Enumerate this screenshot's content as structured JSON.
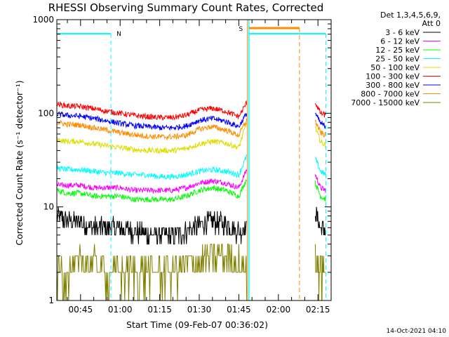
{
  "chart_data": {
    "type": "line",
    "title": "RHESSI Observing Summary Count Rates, Corrected",
    "xlabel": "Start Time (09-Feb-07 00:36:02)",
    "ylabel": "Corrected Count Rate (s⁻¹ detector⁻¹)",
    "y_scale": "log",
    "ylim": [
      1,
      1000
    ],
    "xlim_minutes": [
      36,
      140
    ],
    "x_ticks": [
      {
        "label": "00:45",
        "minute": 45
      },
      {
        "label": "01:00",
        "minute": 60
      },
      {
        "label": "01:15",
        "minute": 75
      },
      {
        "label": "01:30",
        "minute": 90
      },
      {
        "label": "01:45",
        "minute": 105
      },
      {
        "label": "02:00",
        "minute": 120
      },
      {
        "label": "02:15",
        "minute": 135
      }
    ],
    "y_ticks": [
      {
        "label": "1",
        "value": 1
      },
      {
        "label": "10",
        "value": 10
      },
      {
        "label": "100",
        "value": 100
      },
      {
        "label": "1000",
        "value": 1000
      }
    ],
    "legend_header": [
      "Det 1,3,4,5,6,9,",
      "Att 0"
    ],
    "legend_placement": "right",
    "grid": false,
    "x": [
      36,
      40,
      45,
      50,
      55,
      60,
      65,
      70,
      75,
      80,
      85,
      90,
      95,
      100,
      105,
      108
    ],
    "x_after_gap": [
      134,
      136,
      138
    ],
    "series": [
      {
        "name": "3 - 6 keV",
        "color": "#000000",
        "values": [
          8,
          7,
          7,
          6,
          6,
          6,
          5.5,
          5,
          5,
          5,
          5.5,
          6.5,
          7,
          6.5,
          5.5,
          6
        ],
        "values_after_gap": [
          9,
          6,
          5.5
        ]
      },
      {
        "name": "6 - 12 keV",
        "color": "#ff00ff",
        "values": [
          17,
          17,
          17,
          16,
          16,
          16,
          15,
          15,
          15,
          15,
          16,
          18,
          19,
          18,
          16,
          25
        ],
        "values_after_gap": [
          22,
          16,
          15
        ]
      },
      {
        "name": "12 - 25 keV",
        "color": "#00ff00",
        "values": [
          15,
          14,
          14,
          13,
          13,
          13,
          12,
          12,
          12,
          12,
          13,
          15,
          16,
          15,
          13,
          20
        ],
        "values_after_gap": [
          18,
          13,
          12
        ]
      },
      {
        "name": "25 - 50 keV",
        "color": "#00ffff",
        "values": [
          26,
          25,
          25,
          24,
          23,
          23,
          22,
          22,
          21,
          21,
          22,
          24,
          25,
          24,
          22,
          35
        ],
        "values_after_gap": [
          33,
          24,
          22
        ]
      },
      {
        "name": "50 - 100 keV",
        "color": "#dddd00",
        "values": [
          52,
          50,
          50,
          47,
          45,
          43,
          41,
          40,
          40,
          40,
          42,
          47,
          50,
          48,
          43,
          80
        ],
        "values_after_gap": [
          70,
          50,
          45
        ]
      },
      {
        "name": "100 - 300 keV",
        "color": "#ff0000",
        "values": [
          125,
          120,
          118,
          112,
          105,
          100,
          95,
          92,
          90,
          90,
          95,
          108,
          113,
          105,
          92,
          130
        ],
        "values_after_gap": [
          130,
          100,
          95
        ]
      },
      {
        "name": "300 - 800 keV",
        "color": "#0000ff",
        "values": [
          98,
          95,
          93,
          88,
          83,
          78,
          74,
          72,
          70,
          70,
          73,
          84,
          88,
          82,
          72,
          100
        ],
        "values_after_gap": [
          100,
          78,
          72
        ]
      },
      {
        "name": "800 - 7000 keV",
        "color": "#ff8c00",
        "values": [
          80,
          76,
          75,
          70,
          66,
          62,
          59,
          57,
          56,
          56,
          58,
          68,
          72,
          66,
          58,
          85
        ],
        "values_after_gap": [
          82,
          62,
          58
        ]
      },
      {
        "name": "7000 - 15000 keV",
        "color": "#808000",
        "values": [
          2,
          2,
          2.5,
          2.5,
          2,
          2,
          2,
          2,
          2,
          2,
          2.5,
          2.5,
          3,
          3,
          2.5,
          2
        ],
        "values_after_gap": [
          2.5,
          2,
          2
        ]
      }
    ],
    "annotations": [
      {
        "text": "N",
        "color": "#00ffff"
      },
      {
        "text": "S",
        "color": "#ff8c00"
      }
    ]
  },
  "footer": {
    "timestamp": "14-Oct-2021 04:10"
  },
  "colors": {
    "background": "#ffffff",
    "axis": "#000000",
    "night_marker": "#00ffff",
    "saa_marker": "#ff8c00"
  }
}
